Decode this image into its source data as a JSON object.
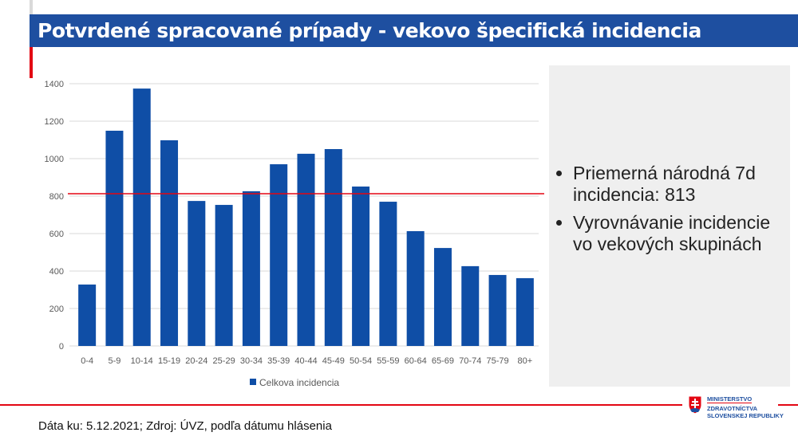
{
  "header": {
    "title": "Potvrdené spracované prípady - vekovo špecifická incidencia"
  },
  "colors": {
    "brand": "#1e4fa0",
    "accent": "#e30613",
    "bar": "#0f4ea6"
  },
  "chart_data": {
    "type": "bar",
    "categories": [
      "0-4",
      "5-9",
      "10-14",
      "15-19",
      "20-24",
      "25-29",
      "30-34",
      "35-39",
      "40-44",
      "45-49",
      "50-54",
      "55-59",
      "60-64",
      "65-69",
      "70-74",
      "75-79",
      "80+"
    ],
    "series": [
      {
        "name": "Celkova incidencia",
        "values": [
          328,
          1149,
          1374,
          1098,
          774,
          753,
          826,
          970,
          1026,
          1051,
          851,
          770,
          613,
          523,
          426,
          379,
          362
        ]
      }
    ],
    "reference_line": {
      "value": 813
    },
    "yticks": [
      "0",
      "200",
      "400",
      "600",
      "800",
      "1000",
      "1200",
      "1400"
    ],
    "ylim": [
      0,
      1400
    ],
    "grid": true,
    "legend": "bottom"
  },
  "panel": {
    "bullets": [
      "Priemerná národná 7d incidencia: 813",
      "Vyrovnávanie incidencie vo vekových skupinách"
    ]
  },
  "footer": {
    "source": "Dáta ku: 5.12.2021; Zdroj: ÚVZ, podľa dátumu hlásenia"
  },
  "logo": {
    "line1": "MINISTERSTVO",
    "line2": "ZDRAVOTNÍCTVA",
    "line3": "SLOVENSKEJ REPUBLIKY"
  }
}
